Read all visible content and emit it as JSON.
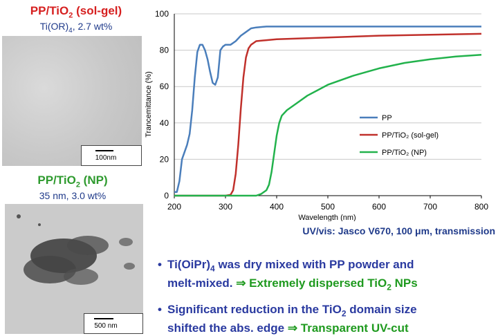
{
  "left": {
    "solgel": {
      "title_main": "PP/TiO",
      "title_sub": "2",
      "title_tail": " (sol-gel)",
      "sub_main": "Ti(OR)",
      "sub_sub": "4",
      "sub_tail": ", 2.7 wt%",
      "scale_label": "100nm"
    },
    "np": {
      "title_main": "PP/TiO",
      "title_sub": "2",
      "title_tail": " (NP)",
      "sub_text": "35 nm, 3.0 wt%",
      "scale_label": "500 nm"
    }
  },
  "caption": {
    "prefix": "UV/vis: Jasco V670, 100 ",
    "mu": "μ",
    "suffix": "m, transmission"
  },
  "bullets": [
    {
      "marker": "•",
      "line1_a": "Ti(OiPr)",
      "line1_sub": "4",
      "line1_b": " was dry mixed with PP powder and",
      "line2_a": "melt-mixed. ",
      "line2_arrow": "⇒",
      "line2_b": " Extremely dispersed TiO",
      "line2_sub": "2",
      "line2_c": " NPs"
    },
    {
      "marker": "•",
      "line1_a": "Significant reduction in the TiO",
      "line1_sub": "2",
      "line1_b": " domain size",
      "line2_a": "shifted the abs. edge  ",
      "line2_arrow": "⇒",
      "line2_b": " Transparent UV-cut"
    }
  ],
  "chart_data": {
    "type": "line",
    "xlabel": "Wavelength (nm)",
    "ylabel": "Trancemittance (%)",
    "xlim": [
      200,
      800
    ],
    "ylim": [
      0,
      100
    ],
    "xticks": [
      200,
      300,
      400,
      500,
      600,
      700,
      800
    ],
    "yticks": [
      0,
      20,
      40,
      60,
      80,
      100
    ],
    "grid": "horizontal",
    "legend_position": "right",
    "series": [
      {
        "name": "PP",
        "color": "#4a7ebb",
        "points": [
          [
            200,
            2
          ],
          [
            205,
            2
          ],
          [
            210,
            8
          ],
          [
            215,
            20
          ],
          [
            220,
            24
          ],
          [
            225,
            28
          ],
          [
            230,
            34
          ],
          [
            235,
            47
          ],
          [
            240,
            65
          ],
          [
            245,
            79
          ],
          [
            250,
            83
          ],
          [
            255,
            83
          ],
          [
            260,
            80
          ],
          [
            265,
            75
          ],
          [
            270,
            68
          ],
          [
            275,
            62
          ],
          [
            280,
            61
          ],
          [
            285,
            65
          ],
          [
            290,
            80
          ],
          [
            295,
            82
          ],
          [
            300,
            83
          ],
          [
            310,
            83
          ],
          [
            320,
            85
          ],
          [
            330,
            88
          ],
          [
            340,
            90
          ],
          [
            350,
            92
          ],
          [
            360,
            92.5
          ],
          [
            380,
            93
          ],
          [
            400,
            93
          ],
          [
            500,
            93
          ],
          [
            600,
            93
          ],
          [
            700,
            93
          ],
          [
            800,
            93
          ]
        ]
      },
      {
        "name": "PP/TiO₂ (sol-gel)",
        "color": "#c0302b",
        "points": [
          [
            200,
            0
          ],
          [
            300,
            0
          ],
          [
            310,
            0.5
          ],
          [
            315,
            3
          ],
          [
            320,
            12
          ],
          [
            325,
            28
          ],
          [
            330,
            48
          ],
          [
            335,
            65
          ],
          [
            340,
            76
          ],
          [
            345,
            81
          ],
          [
            350,
            83
          ],
          [
            355,
            84
          ],
          [
            360,
            85
          ],
          [
            380,
            85.5
          ],
          [
            400,
            86
          ],
          [
            500,
            87
          ],
          [
            600,
            88
          ],
          [
            700,
            88.5
          ],
          [
            800,
            89
          ]
        ]
      },
      {
        "name": "PP/TiO₂ (NP)",
        "color": "#22b24c",
        "points": [
          [
            200,
            0
          ],
          [
            300,
            0
          ],
          [
            360,
            0
          ],
          [
            370,
            1
          ],
          [
            380,
            3
          ],
          [
            385,
            6
          ],
          [
            390,
            13
          ],
          [
            395,
            23
          ],
          [
            400,
            33
          ],
          [
            405,
            40
          ],
          [
            410,
            44
          ],
          [
            420,
            47
          ],
          [
            440,
            51
          ],
          [
            460,
            55
          ],
          [
            480,
            58
          ],
          [
            500,
            61
          ],
          [
            550,
            66
          ],
          [
            600,
            70
          ],
          [
            650,
            73
          ],
          [
            700,
            75
          ],
          [
            750,
            76.5
          ],
          [
            800,
            77.5
          ]
        ]
      }
    ]
  }
}
